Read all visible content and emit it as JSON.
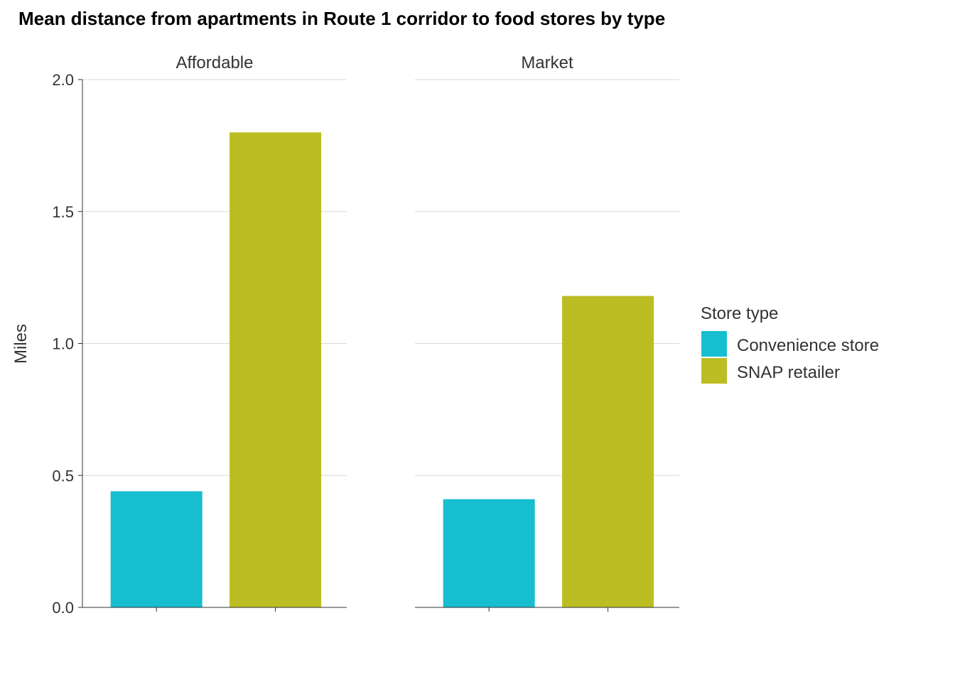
{
  "chart_data": {
    "type": "bar",
    "title": "Mean distance from apartments in Route 1 corridor to food stores by type",
    "ylabel": "Miles",
    "xlabel": "",
    "ylim": [
      0,
      2.0
    ],
    "yticks": [
      "0.0",
      "0.5",
      "1.0",
      "1.5",
      "2.0"
    ],
    "ytick_values": [
      0,
      0.5,
      1.0,
      1.5,
      2.0
    ],
    "grid": true,
    "legend_position": "right",
    "legend_title": "Store type",
    "categories": [
      "Convenience store",
      "SNAP retailer"
    ],
    "colors": [
      "#17becf",
      "#bcbd22"
    ],
    "facets": [
      {
        "name": "Affordable",
        "values": [
          0.44,
          1.8
        ]
      },
      {
        "name": "Market",
        "values": [
          0.41,
          1.18
        ]
      }
    ]
  }
}
